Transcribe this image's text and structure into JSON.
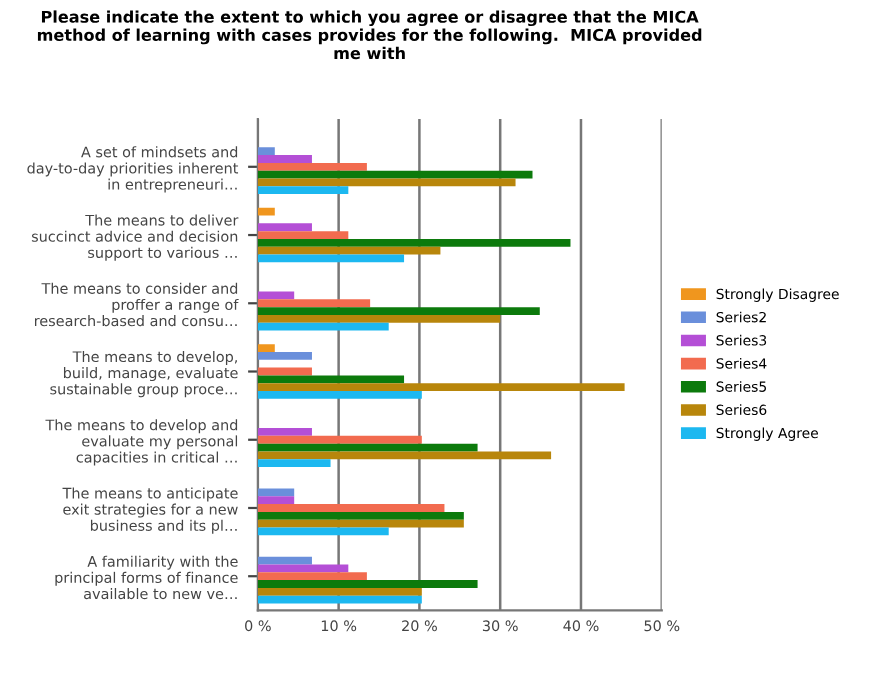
{
  "chart_data": {
    "type": "bar",
    "orientation": "horizontal",
    "title": "Please indicate the extent to which you agree or disagree that the MICA\nmethod of learning with cases provides for the following.  MICA provided\nme with",
    "categories": [
      "A set of mindsets and\nday-to-day priorities inherent\nin entrepreneuri…",
      "The means to deliver\nsuccinct advice and decision\nsupport to various …",
      "The means to consider and\nproffer a range of\nresearch-based and consu…",
      "The means to develop,\nbuild, manage, evaluate\nsustainable group proce…",
      "The means to develop and\nevaluate my personal\ncapacities in critical …",
      "The means to anticipate\nexit strategies for a new\nbusiness and its pl…",
      "A familiarity with the\nprincipal forms of finance\navailable to new ve…"
    ],
    "series": [
      {
        "name": "Strongly Disagree",
        "color": "#f0961e",
        "values": [
          0,
          2.1,
          0,
          2.1,
          0,
          0,
          0
        ]
      },
      {
        "name": "Series2",
        "color": "#6a8fdb",
        "values": [
          2.1,
          0,
          0,
          6.7,
          0,
          4.5,
          6.7
        ]
      },
      {
        "name": "Series3",
        "color": "#b44fd6",
        "values": [
          6.7,
          6.7,
          4.5,
          0,
          6.7,
          4.5,
          11.2
        ]
      },
      {
        "name": "Series4",
        "color": "#f26b4f",
        "values": [
          13.5,
          11.2,
          13.9,
          6.7,
          20.3,
          23.1,
          13.5
        ]
      },
      {
        "name": "Series5",
        "color": "#0c7a0c",
        "values": [
          34,
          38.7,
          34.9,
          18.1,
          27.2,
          25.5,
          27.2
        ]
      },
      {
        "name": "Series6",
        "color": "#b8860b",
        "values": [
          31.9,
          22.6,
          30,
          45.4,
          36.3,
          25.5,
          20.3
        ]
      },
      {
        "name": "Strongly Agree",
        "color": "#1cb8f0",
        "values": [
          11.2,
          18.1,
          16.2,
          20.3,
          9,
          16.2,
          20.3
        ]
      }
    ],
    "xlim": [
      0,
      50
    ],
    "xticks": [
      {
        "value": 0,
        "label": "0 %"
      },
      {
        "value": 10,
        "label": "10 %"
      },
      {
        "value": 20,
        "label": "20 %"
      },
      {
        "value": 30,
        "label": "30 %"
      },
      {
        "value": 40,
        "label": "40 %"
      },
      {
        "value": 50,
        "label": "50 %"
      }
    ],
    "grid": "x",
    "legend": "right"
  }
}
